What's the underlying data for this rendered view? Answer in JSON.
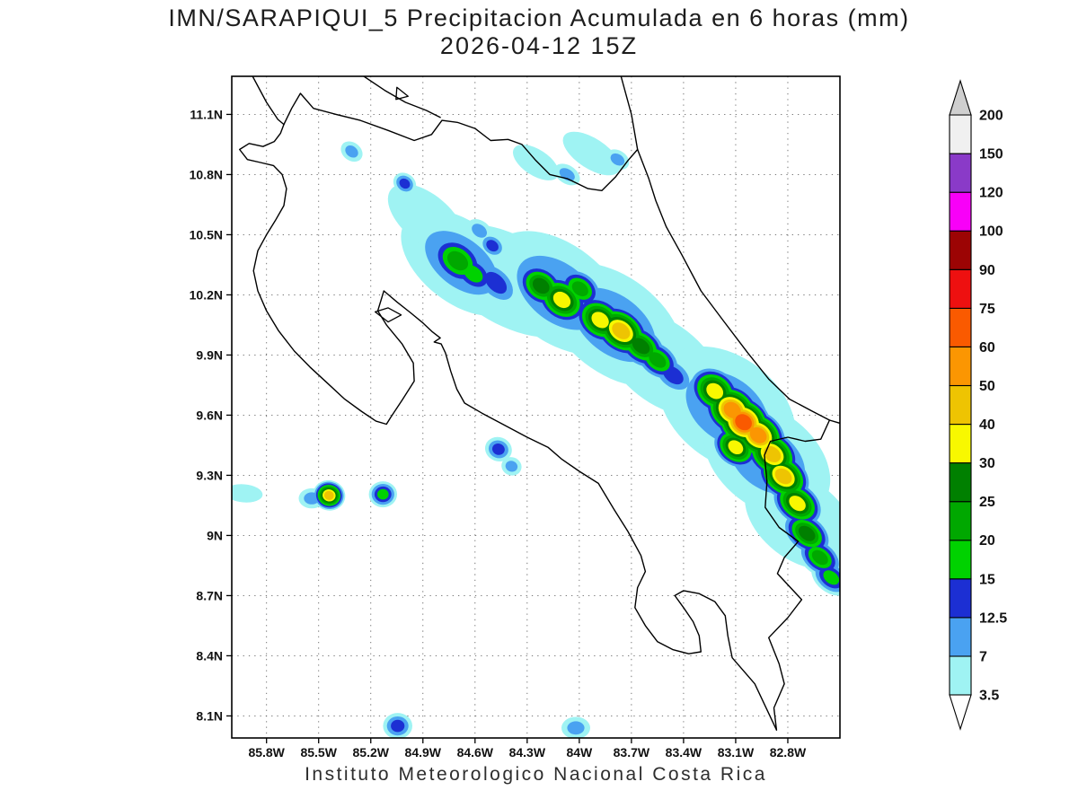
{
  "title": {
    "line1": "IMN/SARAPIQUI_5 Precipitacion Acumulada en 6 horas (mm)",
    "line2": "2026-04-12 15Z"
  },
  "caption": "Instituto Meteorologico Nacional Costa Rica",
  "axes": {
    "y_tick_labels": [
      "11.1N",
      "10.8N",
      "10.5N",
      "10.2N",
      "9.9N",
      "9.6N",
      "9.3N",
      "9N",
      "8.7N",
      "8.4N",
      "8.1N"
    ],
    "y_tick_values": [
      11.1,
      10.8,
      10.5,
      10.2,
      9.9,
      9.6,
      9.3,
      9.0,
      8.7,
      8.4,
      8.1
    ],
    "x_tick_labels": [
      "85.8W",
      "85.5W",
      "85.2W",
      "84.9W",
      "84.6W",
      "84.3W",
      "84W",
      "83.7W",
      "83.4W",
      "83.1W",
      "82.8W"
    ],
    "x_tick_values": [
      85.8,
      85.5,
      85.2,
      84.9,
      84.6,
      84.3,
      84.0,
      83.7,
      83.4,
      83.1,
      82.8
    ],
    "lon_range_w": [
      86.0,
      82.5
    ],
    "lat_range_n": [
      11.29,
      7.99
    ],
    "grid": "dotted"
  },
  "colorbar": {
    "level_labels": [
      "3.5",
      "7",
      "12.5",
      "15",
      "20",
      "25",
      "30",
      "40",
      "50",
      "60",
      "75",
      "90",
      "100",
      "120",
      "150",
      "200"
    ],
    "levels": [
      3.5,
      7,
      12.5,
      15,
      20,
      25,
      30,
      40,
      50,
      60,
      75,
      90,
      100,
      120,
      150,
      200
    ],
    "colors": [
      "#ffffff",
      "#9ff3f3",
      "#4aa2f1",
      "#1c2fd3",
      "#00d200",
      "#00a800",
      "#008000",
      "#f8f800",
      "#eec402",
      "#fb9602",
      "#fa5a00",
      "#ee1010",
      "#9c0404",
      "#f800f8",
      "#8a3ac8",
      "#f0f0f0",
      "#cfcfcf"
    ]
  },
  "chart_data": {
    "type": "map-contour",
    "units": "mm",
    "variable": "6h accumulated precipitation",
    "region": "Costa Rica",
    "coastlines": {
      "pacific_nicaragua": [
        [
          85.88,
          11.29
        ],
        [
          85.8,
          11.16
        ],
        [
          85.735,
          11.075
        ],
        [
          85.7,
          11.05
        ]
      ],
      "border_nicaragua": [
        [
          85.7,
          11.05
        ],
        [
          85.655,
          11.13
        ],
        [
          85.605,
          11.205
        ],
        [
          85.53,
          11.13
        ],
        [
          85.4,
          11.1
        ],
        [
          85.26,
          11.07
        ],
        [
          85.1,
          11.02
        ],
        [
          84.95,
          10.97
        ],
        [
          84.85,
          11.0
        ],
        [
          84.79,
          11.07
        ],
        [
          84.7,
          11.06
        ],
        [
          84.6,
          11.03
        ],
        [
          84.51,
          10.97
        ],
        [
          84.41,
          10.975
        ],
        [
          84.33,
          10.95
        ],
        [
          84.25,
          10.87
        ],
        [
          84.17,
          10.8
        ],
        [
          84.07,
          10.78
        ],
        [
          83.95,
          10.73
        ],
        [
          83.87,
          10.72
        ],
        [
          83.79,
          10.79
        ],
        [
          83.72,
          10.87
        ],
        [
          83.665,
          10.925
        ]
      ],
      "lake_nicaragua_shore": [
        [
          85.24,
          11.29
        ],
        [
          85.12,
          11.22
        ],
        [
          85.0,
          11.16
        ],
        [
          84.88,
          11.12
        ],
        [
          84.8,
          11.085
        ]
      ],
      "caribbean_nicaragua": [
        [
          83.76,
          11.29
        ],
        [
          83.7,
          11.1
        ],
        [
          83.665,
          10.925
        ]
      ],
      "caribbean_cr": [
        [
          83.665,
          10.925
        ],
        [
          83.6,
          10.78
        ],
        [
          83.56,
          10.67
        ],
        [
          83.5,
          10.54
        ],
        [
          83.41,
          10.4
        ],
        [
          83.3,
          10.22
        ],
        [
          83.17,
          10.07
        ],
        [
          83.03,
          9.91
        ],
        [
          82.91,
          9.78
        ],
        [
          82.79,
          9.68
        ],
        [
          82.66,
          9.62
        ],
        [
          82.56,
          9.575
        ],
        [
          82.5,
          9.56
        ]
      ],
      "border_panama": [
        [
          82.56,
          9.575
        ],
        [
          82.61,
          9.48
        ],
        [
          82.7,
          9.47
        ],
        [
          82.8,
          9.49
        ],
        [
          82.9,
          9.47
        ],
        [
          82.935,
          9.4
        ],
        [
          82.92,
          9.27
        ],
        [
          82.93,
          9.14
        ],
        [
          82.85,
          9.04
        ],
        [
          82.74,
          8.97
        ],
        [
          82.82,
          8.89
        ],
        [
          82.86,
          8.81
        ],
        [
          82.72,
          8.68
        ],
        [
          82.8,
          8.59
        ],
        [
          82.91,
          8.49
        ],
        [
          82.85,
          8.36
        ],
        [
          82.82,
          8.26
        ],
        [
          82.88,
          8.14
        ],
        [
          82.865,
          8.03
        ]
      ],
      "pacific_cr": [
        [
          82.865,
          8.03
        ],
        [
          82.93,
          8.15
        ],
        [
          82.99,
          8.26
        ],
        [
          83.06,
          8.33
        ],
        [
          83.12,
          8.39
        ],
        [
          83.145,
          8.5
        ],
        [
          83.16,
          8.6
        ],
        [
          83.22,
          8.67
        ],
        [
          83.31,
          8.71
        ],
        [
          83.4,
          8.725
        ],
        [
          83.45,
          8.7
        ],
        [
          83.4,
          8.64
        ],
        [
          83.345,
          8.57
        ],
        [
          83.31,
          8.5
        ],
        [
          83.3,
          8.42
        ],
        [
          83.37,
          8.41
        ],
        [
          83.46,
          8.43
        ],
        [
          83.55,
          8.47
        ],
        [
          83.62,
          8.55
        ],
        [
          83.68,
          8.64
        ],
        [
          83.665,
          8.74
        ],
        [
          83.62,
          8.82
        ],
        [
          83.645,
          8.9
        ],
        [
          83.72,
          9.02
        ],
        [
          83.8,
          9.13
        ],
        [
          83.89,
          9.26
        ],
        [
          84.0,
          9.32
        ],
        [
          84.1,
          9.38
        ],
        [
          84.18,
          9.44
        ],
        [
          84.3,
          9.49
        ],
        [
          84.43,
          9.55
        ],
        [
          84.56,
          9.61
        ],
        [
          84.66,
          9.66
        ],
        [
          84.705,
          9.73
        ],
        [
          84.74,
          9.82
        ],
        [
          84.77,
          9.91
        ],
        [
          84.795,
          9.955
        ],
        [
          84.835,
          9.965
        ],
        [
          84.8,
          9.985
        ],
        [
          84.845,
          10.015
        ],
        [
          84.9,
          10.06
        ],
        [
          84.97,
          10.11
        ],
        [
          85.05,
          10.165
        ],
        [
          85.125,
          10.22
        ],
        [
          85.16,
          10.12
        ],
        [
          85.11,
          10.05
        ],
        [
          85.02,
          9.955
        ],
        [
          84.955,
          9.86
        ],
        [
          84.95,
          9.77
        ],
        [
          85.02,
          9.675
        ],
        [
          85.085,
          9.59
        ],
        [
          85.11,
          9.555
        ],
        [
          85.17,
          9.57
        ],
        [
          85.255,
          9.62
        ],
        [
          85.35,
          9.68
        ],
        [
          85.45,
          9.76
        ],
        [
          85.55,
          9.84
        ],
        [
          85.64,
          9.92
        ],
        [
          85.73,
          10.02
        ],
        [
          85.8,
          10.12
        ],
        [
          85.85,
          10.22
        ],
        [
          85.875,
          10.32
        ],
        [
          85.85,
          10.42
        ],
        [
          85.8,
          10.5
        ],
        [
          85.75,
          10.57
        ],
        [
          85.7,
          10.645
        ],
        [
          85.685,
          10.73
        ],
        [
          85.71,
          10.8
        ],
        [
          85.76,
          10.845
        ],
        [
          85.835,
          10.86
        ],
        [
          85.91,
          10.875
        ],
        [
          85.955,
          10.925
        ],
        [
          85.9,
          10.955
        ],
        [
          85.82,
          10.94
        ],
        [
          85.755,
          10.965
        ],
        [
          85.72,
          11.005
        ],
        [
          85.7,
          11.05
        ]
      ]
    },
    "islands": {
      "isla_chira": [
        [
          85.175,
          10.115
        ],
        [
          85.1,
          10.135
        ],
        [
          85.025,
          10.1
        ],
        [
          85.1,
          10.065
        ]
      ],
      "lake_islet": [
        [
          85.05,
          11.235
        ],
        [
          84.985,
          11.19
        ],
        [
          85.055,
          11.175
        ]
      ]
    },
    "precip_cells": [
      [
        84.68,
        10.36,
        1,
        0.2,
        2.0,
        38
      ],
      [
        84.4,
        10.27,
        0,
        0.22,
        2.2,
        30
      ],
      [
        84.12,
        10.21,
        1,
        0.24,
        1.9,
        38
      ],
      [
        83.8,
        10.05,
        1,
        0.24,
        1.9,
        38
      ],
      [
        83.52,
        9.86,
        0,
        0.2,
        2.0,
        38
      ],
      [
        83.15,
        9.63,
        1,
        0.26,
        1.7,
        38
      ],
      [
        82.92,
        9.38,
        1,
        0.24,
        1.7,
        38
      ],
      [
        82.73,
        9.08,
        0,
        0.2,
        1.8,
        38
      ],
      [
        84.88,
        10.58,
        0,
        0.12,
        2.2,
        40
      ],
      [
        84.7,
        10.37,
        4,
        0.115,
        1.6,
        38
      ],
      [
        84.61,
        10.305,
        3,
        0.09,
        1.7,
        38
      ],
      [
        84.48,
        10.26,
        2,
        0.085,
        1.9,
        45
      ],
      [
        84.22,
        10.245,
        5,
        0.105,
        1.5,
        38
      ],
      [
        84.1,
        10.175,
        6,
        0.115,
        1.5,
        38
      ],
      [
        83.995,
        10.23,
        4,
        0.09,
        1.6,
        38
      ],
      [
        83.88,
        10.075,
        6,
        0.115,
        1.5,
        38
      ],
      [
        83.76,
        10.02,
        7,
        0.12,
        1.6,
        38
      ],
      [
        83.645,
        9.945,
        5,
        0.1,
        1.7,
        38
      ],
      [
        83.55,
        9.875,
        4,
        0.09,
        1.7,
        38
      ],
      [
        83.46,
        9.8,
        2,
        0.08,
        1.8,
        38
      ],
      [
        83.22,
        9.72,
        6,
        0.115,
        1.45,
        38
      ],
      [
        83.12,
        9.625,
        8,
        0.13,
        1.4,
        38
      ],
      [
        83.055,
        9.565,
        9,
        0.135,
        1.35,
        38
      ],
      [
        82.97,
        9.5,
        8,
        0.125,
        1.45,
        38
      ],
      [
        83.1,
        9.44,
        6,
        0.1,
        1.5,
        38
      ],
      [
        82.89,
        9.405,
        7,
        0.12,
        1.5,
        38
      ],
      [
        82.825,
        9.295,
        7,
        0.115,
        1.55,
        38
      ],
      [
        82.745,
        9.16,
        6,
        0.105,
        1.6,
        38
      ],
      [
        82.69,
        9.01,
        5,
        0.095,
        1.7,
        38
      ],
      [
        82.615,
        8.89,
        4,
        0.085,
        1.7,
        38
      ],
      [
        82.55,
        8.79,
        3,
        0.075,
        1.7,
        38
      ],
      [
        85.93,
        9.21,
        0,
        0.045,
        2.4,
        5
      ],
      [
        85.44,
        9.2,
        7,
        0.075,
        1.25,
        15
      ],
      [
        85.54,
        9.185,
        1,
        0.05,
        1.5,
        0
      ],
      [
        85.13,
        9.205,
        3,
        0.065,
        1.25,
        0
      ],
      [
        84.465,
        9.43,
        2,
        0.06,
        1.3,
        20
      ],
      [
        84.39,
        9.345,
        1,
        0.045,
        1.3,
        20
      ],
      [
        85.31,
        10.915,
        1,
        0.045,
        1.5,
        38
      ],
      [
        85.005,
        10.755,
        2,
        0.05,
        1.4,
        38
      ],
      [
        84.25,
        10.86,
        0,
        0.065,
        2.3,
        33
      ],
      [
        84.07,
        10.8,
        1,
        0.045,
        1.8,
        33
      ],
      [
        83.93,
        10.905,
        0,
        0.075,
        2.5,
        33
      ],
      [
        83.78,
        10.875,
        1,
        0.045,
        1.6,
        33
      ],
      [
        85.045,
        8.05,
        2,
        0.065,
        1.3,
        0
      ],
      [
        84.02,
        8.04,
        1,
        0.055,
        1.5,
        0
      ],
      [
        84.575,
        10.52,
        1,
        0.05,
        1.6,
        38
      ],
      [
        84.5,
        10.445,
        2,
        0.055,
        1.5,
        38
      ]
    ]
  }
}
